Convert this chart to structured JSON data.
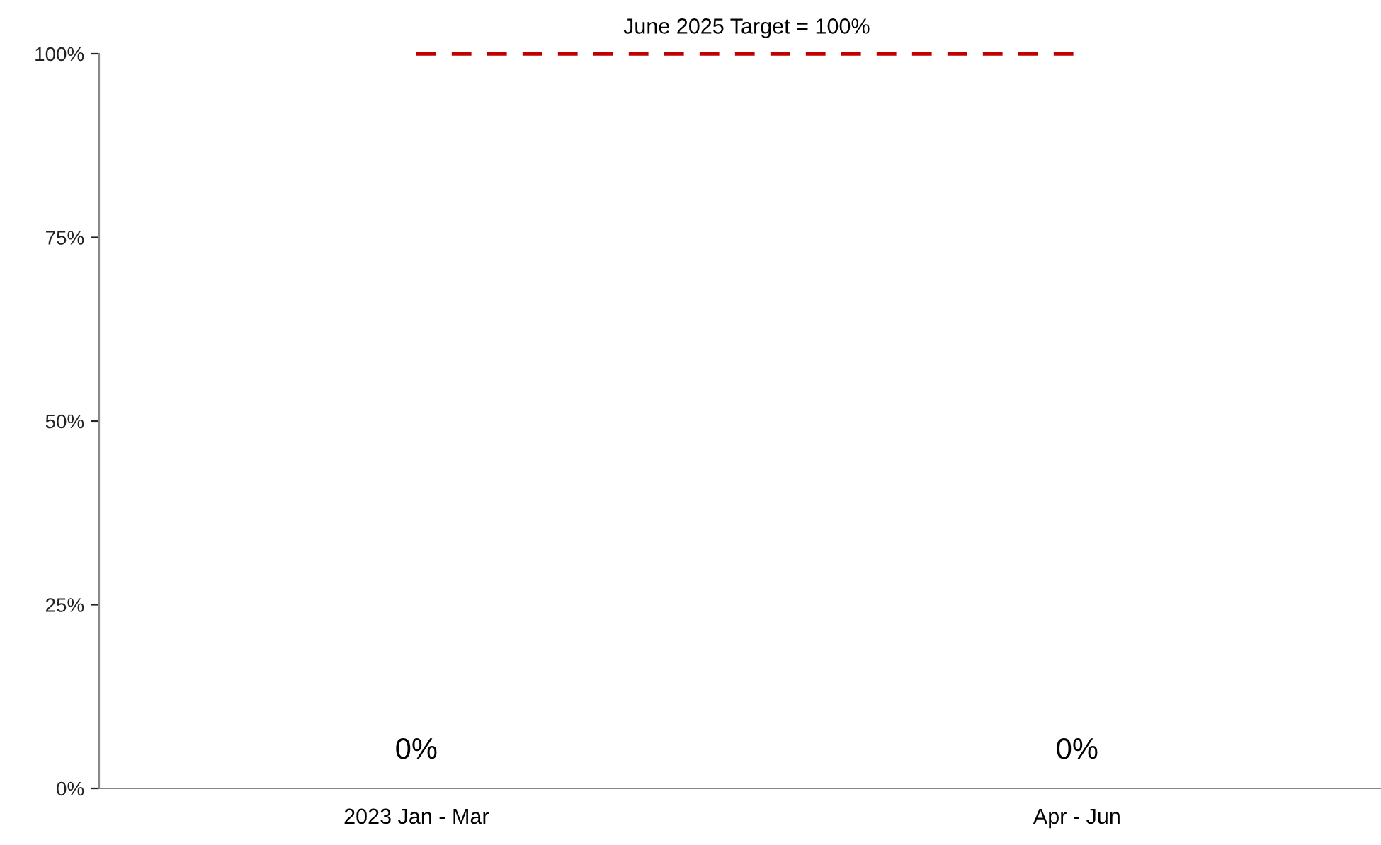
{
  "chart_data": {
    "type": "bar",
    "categories": [
      "2023 Jan - Mar",
      "Apr - Jun"
    ],
    "values": [
      0,
      0
    ],
    "value_labels": [
      "0%",
      "0%"
    ],
    "ylim": [
      0,
      100
    ],
    "yticks": [
      {
        "value": 0,
        "label": "0%"
      },
      {
        "value": 25,
        "label": "25%"
      },
      {
        "value": 50,
        "label": "50%"
      },
      {
        "value": 75,
        "label": "75%"
      },
      {
        "value": 100,
        "label": "100%"
      }
    ],
    "ref_lines": [
      {
        "axis": "y",
        "value": 100,
        "label": "June 2025 Target = 100%",
        "color": "#c00000",
        "line_style": "dashed"
      }
    ],
    "grid": false,
    "legend": false
  }
}
